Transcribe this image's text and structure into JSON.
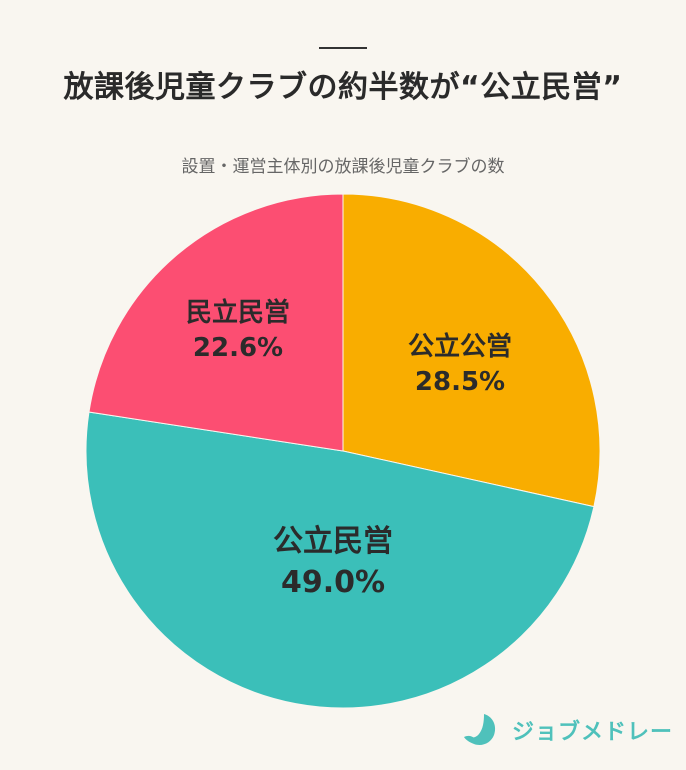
{
  "header": {
    "title": "放課後児童クラブの約半数が“公立民営”",
    "subtitle": "設置・運営主体別の放課後児童クラブの数"
  },
  "chart_data": {
    "type": "pie",
    "title": "設置・運営主体別の放課後児童クラブの数",
    "start_angle_deg": 0,
    "direction": "clockwise",
    "slices": [
      {
        "label": "公立公営",
        "value": 28.5,
        "display": "28.5%",
        "color": "#f9ad00"
      },
      {
        "label": "公立民営",
        "value": 49.0,
        "display": "49.0%",
        "color": "#3bbfb9"
      },
      {
        "label": "民立民営",
        "value": 22.6,
        "display": "22.6%",
        "color": "#fc4e72"
      }
    ]
  },
  "logo": {
    "text": "ジョブメドレー",
    "color": "#4fc1bb"
  }
}
